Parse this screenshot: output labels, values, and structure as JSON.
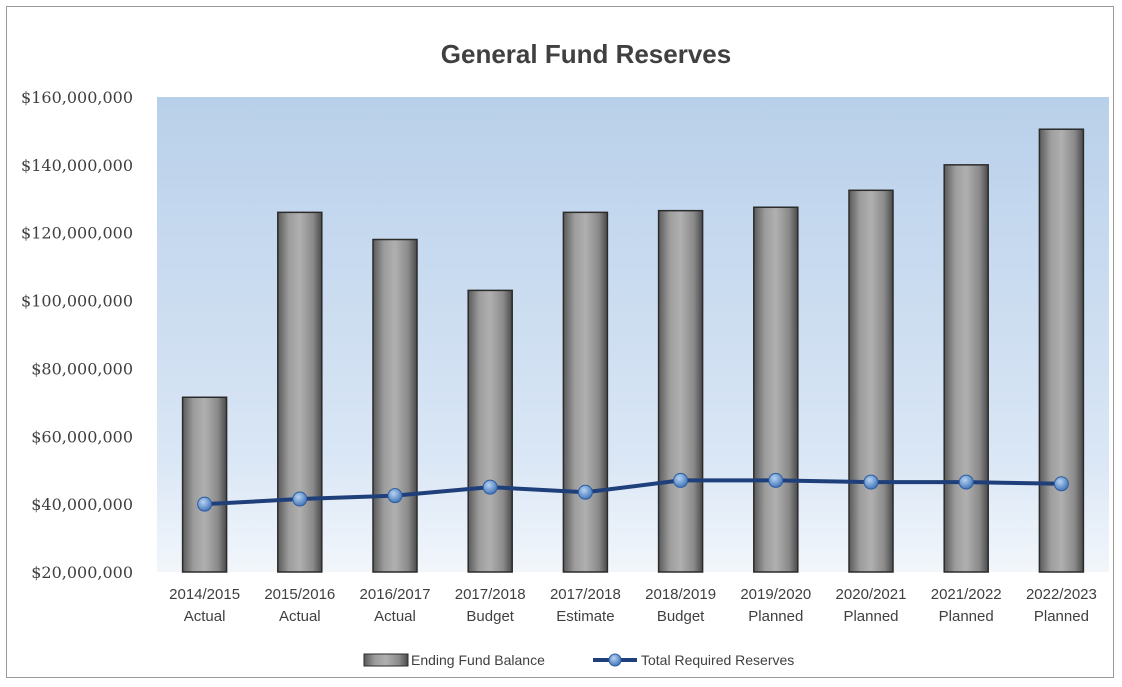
{
  "chart_data": {
    "type": "bar",
    "title": "General Fund Reserves",
    "xlabel": "",
    "ylabel": "",
    "ylim": [
      20000000,
      160000000
    ],
    "yticks": [
      "$20,000,000",
      "$40,000,000",
      "$60,000,000",
      "$80,000,000",
      "$100,000,000",
      "$120,000,000",
      "$140,000,000",
      "$160,000,000"
    ],
    "categories": [
      [
        "2014/2015",
        "Actual"
      ],
      [
        "2015/2016",
        "Actual"
      ],
      [
        "2016/2017",
        "Actual"
      ],
      [
        "2017/2018",
        "Budget"
      ],
      [
        "2017/2018",
        "Estimate"
      ],
      [
        "2018/2019",
        "Budget"
      ],
      [
        "2019/2020",
        "Planned"
      ],
      [
        "2020/2021",
        "Planned"
      ],
      [
        "2021/2022",
        "Planned"
      ],
      [
        "2022/2023",
        "Planned"
      ]
    ],
    "series": [
      {
        "name": "Ending Fund Balance",
        "type": "bar",
        "values": [
          71500000,
          126000000,
          118000000,
          103000000,
          126000000,
          126500000,
          127500000,
          132500000,
          140000000,
          150500000
        ]
      },
      {
        "name": "Total Required Reserves",
        "type": "line",
        "values": [
          40000000,
          41500000,
          42500000,
          45000000,
          43500000,
          47000000,
          47000000,
          46500000,
          46500000,
          46000000
        ]
      }
    ],
    "legend": "bottom",
    "grid": false,
    "colors": {
      "bar": "#8a8a8a",
      "bar_edge": "#2b2b2b",
      "line": "#1f3f7a",
      "marker": "#4f86c6",
      "plot_bg_top": "#b9d0ea",
      "plot_bg_bottom": "#eef4fb"
    }
  }
}
